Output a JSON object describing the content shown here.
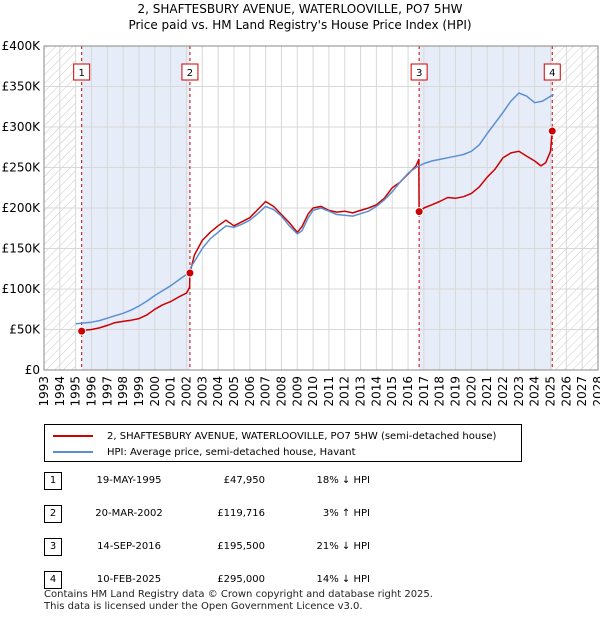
{
  "title": "2, SHAFTESBURY AVENUE, WATERLOOVILLE, PO7 5HW",
  "subtitle": "Price paid vs. HM Land Registry's House Price Index (HPI)",
  "colors": {
    "property": "#cc0000",
    "hpi": "#5b8fd4",
    "shade": "#dde6f5",
    "grid": "#d8d8d8"
  },
  "chart_data": {
    "type": "line",
    "xlim": [
      1993,
      2028
    ],
    "ylim": [
      0,
      400000
    ],
    "y_ticks": [
      {
        "value": 0,
        "label": "£0"
      },
      {
        "value": 50000,
        "label": "£50K"
      },
      {
        "value": 100000,
        "label": "£100K"
      },
      {
        "value": 150000,
        "label": "£150K"
      },
      {
        "value": 200000,
        "label": "£200K"
      },
      {
        "value": 250000,
        "label": "£250K"
      },
      {
        "value": 300000,
        "label": "£300K"
      },
      {
        "value": 350000,
        "label": "£350K"
      },
      {
        "value": 400000,
        "label": "£400K"
      }
    ],
    "x_ticks": [
      "1993",
      "1994",
      "1995",
      "1996",
      "1997",
      "1998",
      "1999",
      "2000",
      "2001",
      "2002",
      "2003",
      "2004",
      "2005",
      "2006",
      "2007",
      "2008",
      "2009",
      "2010",
      "2011",
      "2012",
      "2013",
      "2014",
      "2015",
      "2016",
      "2017",
      "2018",
      "2019",
      "2020",
      "2021",
      "2022",
      "2023",
      "2024",
      "2025",
      "2026",
      "2027",
      "2028"
    ],
    "hatch_before": 1995.0,
    "hatch_after": 2025.2,
    "shaded_ranges": [
      [
        1995.38,
        2002.22
      ],
      [
        2016.7,
        2025.11
      ]
    ],
    "series": [
      {
        "name": "2, SHAFTESBURY AVENUE, WATERLOOVILLE, PO7 5HW (semi-detached house)",
        "key": "property",
        "x": [
          1995.38,
          1995.5,
          1996.0,
          1996.5,
          1997.0,
          1997.5,
          1998.0,
          1998.5,
          1999.0,
          1999.5,
          2000.0,
          2000.5,
          2001.0,
          2001.5,
          2002.0,
          2002.2,
          2002.22,
          2002.5,
          2003.0,
          2003.5,
          2004.0,
          2004.5,
          2005.0,
          2005.5,
          2006.0,
          2006.5,
          2007.0,
          2007.5,
          2008.0,
          2008.5,
          2009.0,
          2009.3,
          2009.7,
          2010.0,
          2010.5,
          2011.0,
          2011.5,
          2012.0,
          2012.5,
          2013.0,
          2013.5,
          2014.0,
          2014.5,
          2015.0,
          2015.5,
          2016.0,
          2016.5,
          2016.68,
          2016.7,
          2017.0,
          2017.5,
          2018.0,
          2018.5,
          2019.0,
          2019.5,
          2020.0,
          2020.5,
          2021.0,
          2021.5,
          2022.0,
          2022.5,
          2023.0,
          2023.5,
          2024.0,
          2024.4,
          2024.7,
          2025.0,
          2025.11
        ],
        "values": [
          47950,
          49000,
          50000,
          52000,
          55000,
          58500,
          60000,
          61500,
          63500,
          68000,
          75000,
          80500,
          84500,
          90000,
          95000,
          102000,
          119716,
          142000,
          160000,
          170000,
          178000,
          185000,
          178000,
          183000,
          188000,
          198000,
          208000,
          202000,
          192000,
          182000,
          170000,
          177000,
          193000,
          200000,
          202000,
          197000,
          195000,
          196000,
          194000,
          197000,
          200000,
          204000,
          212000,
          225000,
          232000,
          242000,
          252000,
          260000,
          195500,
          200000,
          204000,
          208000,
          213000,
          212000,
          214000,
          218000,
          226000,
          238000,
          248000,
          262000,
          268000,
          270000,
          264000,
          258000,
          252000,
          256000,
          270000,
          295000
        ]
      },
      {
        "name": "HPI: Average price, semi-detached house, Havant",
        "key": "hpi",
        "x": [
          1995.0,
          1995.5,
          1996.0,
          1996.5,
          1997.0,
          1997.5,
          1998.0,
          1998.5,
          1999.0,
          1999.5,
          2000.0,
          2000.5,
          2001.0,
          2001.5,
          2002.0,
          2002.5,
          2003.0,
          2003.5,
          2004.0,
          2004.5,
          2005.0,
          2005.5,
          2006.0,
          2006.5,
          2007.0,
          2007.5,
          2008.0,
          2008.5,
          2009.0,
          2009.3,
          2009.7,
          2010.0,
          2010.5,
          2011.0,
          2011.5,
          2012.0,
          2012.5,
          2013.0,
          2013.5,
          2014.0,
          2014.5,
          2015.0,
          2015.5,
          2016.0,
          2016.5,
          2017.0,
          2017.5,
          2018.0,
          2018.5,
          2019.0,
          2019.5,
          2020.0,
          2020.5,
          2021.0,
          2021.5,
          2022.0,
          2022.5,
          2023.0,
          2023.5,
          2024.0,
          2024.5,
          2025.0,
          2025.2
        ],
        "values": [
          57000,
          58000,
          59000,
          61000,
          64000,
          67000,
          70000,
          74000,
          79000,
          85000,
          92000,
          98000,
          104000,
          111000,
          118000,
          134000,
          150000,
          162000,
          170000,
          178000,
          176000,
          180000,
          185000,
          193000,
          202000,
          198000,
          190000,
          178000,
          168000,
          172000,
          188000,
          197000,
          200000,
          196000,
          192000,
          191000,
          190000,
          193000,
          196000,
          202000,
          210000,
          220000,
          232000,
          243000,
          250000,
          255000,
          258000,
          260000,
          262000,
          264000,
          266000,
          270000,
          278000,
          292000,
          305000,
          318000,
          332000,
          342000,
          338000,
          330000,
          332000,
          338000,
          340000
        ]
      }
    ],
    "sales": [
      {
        "n": "1",
        "x": 1995.38,
        "y": 47950
      },
      {
        "n": "2",
        "x": 2002.22,
        "y": 119716
      },
      {
        "n": "3",
        "x": 2016.7,
        "y": 195500
      },
      {
        "n": "4",
        "x": 2025.11,
        "y": 295000
      }
    ]
  },
  "legend": {
    "property": "2, SHAFTESBURY AVENUE, WATERLOOVILLE, PO7 5HW (semi-detached house)",
    "hpi": "HPI: Average price, semi-detached house, Havant"
  },
  "table": [
    {
      "n": "1",
      "date": "19-MAY-1995",
      "price": "£47,950",
      "hpi": "18% ↓ HPI"
    },
    {
      "n": "2",
      "date": "20-MAR-2002",
      "price": "£119,716",
      "hpi": "3% ↑ HPI"
    },
    {
      "n": "3",
      "date": "14-SEP-2016",
      "price": "£195,500",
      "hpi": "21% ↓ HPI"
    },
    {
      "n": "4",
      "date": "10-FEB-2025",
      "price": "£295,000",
      "hpi": "14% ↓ HPI"
    }
  ],
  "footer": {
    "line1": "Contains HM Land Registry data © Crown copyright and database right 2025.",
    "line2": "This data is licensed under the Open Government Licence v3.0."
  }
}
